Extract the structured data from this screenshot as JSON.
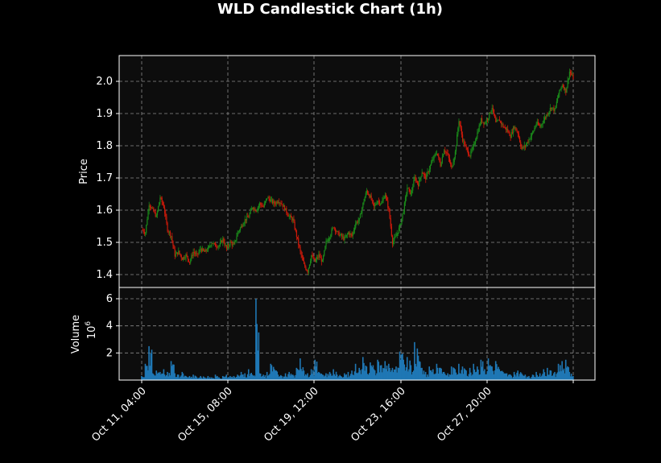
{
  "chart_data": {
    "type": "candlestick",
    "title": "WLD Candlestick Chart (1h)",
    "ylabel": "Price",
    "volume_label": "Volume",
    "volume_multiplier": "10",
    "volume_exponent": "6",
    "ylim": [
      1.36,
      2.08
    ],
    "volume_ylim": [
      0,
      6.0
    ],
    "price_ticks": [
      "1.4",
      "1.5",
      "1.6",
      "1.7",
      "1.8",
      "1.9",
      "2.0"
    ],
    "volume_ticks": [
      "2",
      "4",
      "6"
    ],
    "x_tick_labels": [
      "Oct 11, 04:00",
      "Oct 15, 08:00",
      "Oct 19, 12:00",
      "Oct 23, 16:00",
      "Oct 27, 20:00"
    ],
    "grid": true,
    "colors": {
      "up": "#1a8a1a",
      "down": "#cc1a0a",
      "volume": "#1f77b4",
      "background": "#000000",
      "panel": "#0d0d0d"
    },
    "price_path": [
      [
        0,
        1.54
      ],
      [
        1,
        1.53
      ],
      [
        2,
        1.62
      ],
      [
        3,
        1.6
      ],
      [
        4,
        1.58
      ],
      [
        5,
        1.64
      ],
      [
        6,
        1.61
      ],
      [
        7,
        1.54
      ],
      [
        8,
        1.52
      ],
      [
        9,
        1.46
      ],
      [
        10,
        1.47
      ],
      [
        11,
        1.45
      ],
      [
        12,
        1.46
      ],
      [
        13,
        1.44
      ],
      [
        14,
        1.47
      ],
      [
        15,
        1.46
      ],
      [
        16,
        1.48
      ],
      [
        17,
        1.47
      ],
      [
        18,
        1.48
      ],
      [
        19,
        1.5
      ],
      [
        20,
        1.49
      ],
      [
        21,
        1.49
      ],
      [
        22,
        1.51
      ],
      [
        23,
        1.48
      ],
      [
        24,
        1.5
      ],
      [
        25,
        1.49
      ],
      [
        26,
        1.53
      ],
      [
        27,
        1.55
      ],
      [
        28,
        1.57
      ],
      [
        29,
        1.58
      ],
      [
        30,
        1.61
      ],
      [
        31,
        1.6
      ],
      [
        32,
        1.62
      ],
      [
        33,
        1.61
      ],
      [
        34,
        1.64
      ],
      [
        35,
        1.63
      ],
      [
        36,
        1.62
      ],
      [
        37,
        1.63
      ],
      [
        38,
        1.62
      ],
      [
        39,
        1.6
      ],
      [
        40,
        1.58
      ],
      [
        41,
        1.57
      ],
      [
        42,
        1.52
      ],
      [
        43,
        1.47
      ],
      [
        44,
        1.43
      ],
      [
        45,
        1.41
      ],
      [
        46,
        1.46
      ],
      [
        47,
        1.44
      ],
      [
        48,
        1.46
      ],
      [
        49,
        1.44
      ],
      [
        50,
        1.5
      ],
      [
        51,
        1.52
      ],
      [
        52,
        1.55
      ],
      [
        53,
        1.53
      ],
      [
        54,
        1.52
      ],
      [
        55,
        1.51
      ],
      [
        56,
        1.53
      ],
      [
        57,
        1.52
      ],
      [
        58,
        1.56
      ],
      [
        59,
        1.57
      ],
      [
        60,
        1.62
      ],
      [
        61,
        1.66
      ],
      [
        62,
        1.64
      ],
      [
        63,
        1.61
      ],
      [
        64,
        1.63
      ],
      [
        65,
        1.62
      ],
      [
        66,
        1.65
      ],
      [
        67,
        1.6
      ],
      [
        68,
        1.5
      ],
      [
        69,
        1.52
      ],
      [
        70,
        1.55
      ],
      [
        71,
        1.6
      ],
      [
        72,
        1.67
      ],
      [
        73,
        1.65
      ],
      [
        74,
        1.7
      ],
      [
        75,
        1.68
      ],
      [
        76,
        1.72
      ],
      [
        77,
        1.7
      ],
      [
        78,
        1.73
      ],
      [
        79,
        1.76
      ],
      [
        80,
        1.78
      ],
      [
        81,
        1.74
      ],
      [
        82,
        1.79
      ],
      [
        83,
        1.77
      ],
      [
        84,
        1.73
      ],
      [
        85,
        1.78
      ],
      [
        86,
        1.88
      ],
      [
        87,
        1.82
      ],
      [
        88,
        1.79
      ],
      [
        89,
        1.77
      ],
      [
        90,
        1.8
      ],
      [
        91,
        1.84
      ],
      [
        92,
        1.88
      ],
      [
        93,
        1.87
      ],
      [
        94,
        1.89
      ],
      [
        95,
        1.92
      ],
      [
        96,
        1.87
      ],
      [
        97,
        1.88
      ],
      [
        98,
        1.86
      ],
      [
        99,
        1.85
      ],
      [
        100,
        1.83
      ],
      [
        101,
        1.86
      ],
      [
        102,
        1.84
      ],
      [
        103,
        1.79
      ],
      [
        104,
        1.8
      ],
      [
        105,
        1.82
      ],
      [
        106,
        1.84
      ],
      [
        107,
        1.87
      ],
      [
        108,
        1.86
      ],
      [
        109,
        1.88
      ],
      [
        110,
        1.9
      ],
      [
        111,
        1.92
      ],
      [
        112,
        1.91
      ],
      [
        113,
        1.96
      ],
      [
        114,
        1.99
      ],
      [
        115,
        1.97
      ],
      [
        116,
        2.03
      ],
      [
        117,
        2.01
      ]
    ],
    "volume_path": [
      [
        0,
        0.3
      ],
      [
        1,
        1.2
      ],
      [
        2,
        2.5
      ],
      [
        3,
        0.5
      ],
      [
        4,
        0.7
      ],
      [
        5,
        0.6
      ],
      [
        6,
        0.8
      ],
      [
        7,
        0.6
      ],
      [
        8,
        1.4
      ],
      [
        9,
        0.5
      ],
      [
        10,
        0.4
      ],
      [
        11,
        0.6
      ],
      [
        12,
        0.3
      ],
      [
        13,
        0.3
      ],
      [
        14,
        0.4
      ],
      [
        15,
        0.2
      ],
      [
        16,
        0.3
      ],
      [
        17,
        0.2
      ],
      [
        18,
        0.3
      ],
      [
        19,
        0.2
      ],
      [
        20,
        0.4
      ],
      [
        21,
        0.2
      ],
      [
        22,
        0.3
      ],
      [
        23,
        0.4
      ],
      [
        24,
        0.3
      ],
      [
        25,
        0.3
      ],
      [
        26,
        0.4
      ],
      [
        27,
        0.6
      ],
      [
        28,
        0.5
      ],
      [
        29,
        0.8
      ],
      [
        30,
        0.4
      ],
      [
        31,
        6.0
      ],
      [
        32,
        0.5
      ],
      [
        33,
        0.4
      ],
      [
        34,
        0.6
      ],
      [
        35,
        1.2
      ],
      [
        36,
        0.8
      ],
      [
        37,
        0.4
      ],
      [
        38,
        0.3
      ],
      [
        39,
        0.5
      ],
      [
        40,
        0.6
      ],
      [
        41,
        0.4
      ],
      [
        42,
        0.9
      ],
      [
        43,
        1.6
      ],
      [
        44,
        0.7
      ],
      [
        45,
        0.5
      ],
      [
        46,
        0.8
      ],
      [
        47,
        1.5
      ],
      [
        48,
        0.6
      ],
      [
        49,
        0.4
      ],
      [
        50,
        0.5
      ],
      [
        51,
        0.6
      ],
      [
        52,
        0.8
      ],
      [
        53,
        0.4
      ],
      [
        54,
        0.3
      ],
      [
        55,
        0.5
      ],
      [
        56,
        0.6
      ],
      [
        57,
        0.7
      ],
      [
        58,
        1.2
      ],
      [
        59,
        0.9
      ],
      [
        60,
        1.7
      ],
      [
        61,
        1.0
      ],
      [
        62,
        1.3
      ],
      [
        63,
        0.8
      ],
      [
        64,
        1.5
      ],
      [
        65,
        1.1
      ],
      [
        66,
        1.4
      ],
      [
        67,
        1.2
      ],
      [
        68,
        0.9
      ],
      [
        69,
        1.0
      ],
      [
        70,
        2.1
      ],
      [
        71,
        1.5
      ],
      [
        72,
        1.7
      ],
      [
        73,
        1.1
      ],
      [
        74,
        2.8
      ],
      [
        75,
        1.8
      ],
      [
        76,
        0.9
      ],
      [
        77,
        0.6
      ],
      [
        78,
        1.0
      ],
      [
        79,
        0.8
      ],
      [
        80,
        1.2
      ],
      [
        81,
        0.9
      ],
      [
        82,
        0.6
      ],
      [
        83,
        0.5
      ],
      [
        84,
        1.0
      ],
      [
        85,
        0.8
      ],
      [
        86,
        1.2
      ],
      [
        87,
        1.0
      ],
      [
        88,
        0.7
      ],
      [
        89,
        0.9
      ],
      [
        90,
        1.2
      ],
      [
        91,
        1.0
      ],
      [
        92,
        1.5
      ],
      [
        93,
        0.8
      ],
      [
        94,
        1.6
      ],
      [
        95,
        1.0
      ],
      [
        96,
        1.4
      ],
      [
        97,
        0.8
      ],
      [
        98,
        0.6
      ],
      [
        99,
        0.5
      ],
      [
        100,
        0.4
      ],
      [
        101,
        0.6
      ],
      [
        102,
        0.7
      ],
      [
        103,
        0.5
      ],
      [
        104,
        0.4
      ],
      [
        105,
        0.3
      ],
      [
        106,
        0.4
      ],
      [
        107,
        0.6
      ],
      [
        108,
        0.5
      ],
      [
        109,
        0.8
      ],
      [
        110,
        0.9
      ],
      [
        111,
        0.7
      ],
      [
        112,
        0.6
      ],
      [
        113,
        1.2
      ],
      [
        114,
        1.4
      ],
      [
        115,
        1.5
      ],
      [
        116,
        0.6
      ],
      [
        117,
        0.3
      ]
    ]
  }
}
